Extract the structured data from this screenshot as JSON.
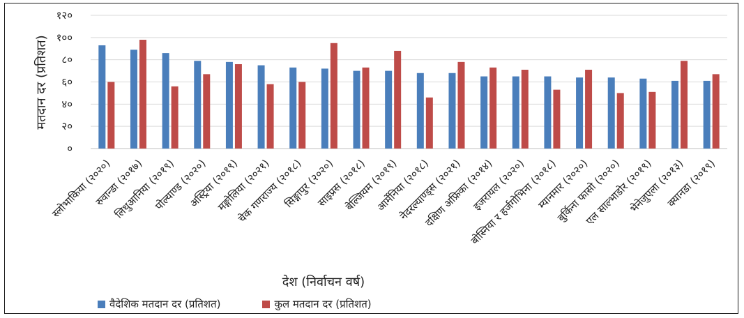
{
  "chart_data": {
    "type": "bar",
    "xlabel": "देश (निर्वाचन वर्ष)",
    "ylabel": "मतदान दर (प्रतिशत)",
    "ylim": [
      0,
      120
    ],
    "yticks": [
      0,
      20,
      40,
      60,
      80,
      100,
      120
    ],
    "ytick_labels": [
      "०",
      "२०",
      "४०",
      "६०",
      "८०",
      "१००",
      "१२०"
    ],
    "grid": true,
    "legend_position": "bottom-left",
    "categories": [
      "स्लोभाकिया (२०२०)",
      "रुवान्डा (२०१७)",
      "लिथुआनिया (२०१९)",
      "पोल्याण्ड (२०२०)",
      "अस्ट्रिया (२०१९)",
      "मङ्गोलिया (२०२१)",
      "चेक गणराज्य (२०१८)",
      "सिङ्गापुर (२०२०)",
      "साइप्रस (२०१८)",
      "बेल्जियम (२०१९)",
      "आर्मेनिया (२०१८)",
      "नेदरल्याण्ड्स (२०२१)",
      "दक्षिण अफ्रिका (२०१४)",
      "इजरायल (२०२०)",
      "बोस्निया र हर्जगोभिना (२०१८)",
      "म्यानमार (२०२०)",
      "बुर्किना फासो (२०२०)",
      "एल साल्भाडोर (२०१९)",
      "भेनेजुएला (२०१३)",
      "क्यानडा (२०१९)"
    ],
    "series": [
      {
        "name": "वैदेशिक मतदान दर (प्रतिशत)",
        "color": "#4a7ebb",
        "values": [
          93,
          89,
          86,
          79,
          78,
          75,
          73,
          72,
          70,
          70,
          68,
          68,
          65,
          65,
          65,
          64,
          64,
          63,
          61,
          61
        ]
      },
      {
        "name": "कुल मतदान दर (प्रतिशत)",
        "color": "#be4b48",
        "values": [
          60,
          98,
          56,
          67,
          76,
          58,
          60,
          95,
          73,
          88,
          46,
          78,
          73,
          71,
          53,
          71,
          50,
          51,
          79,
          67
        ]
      }
    ]
  }
}
